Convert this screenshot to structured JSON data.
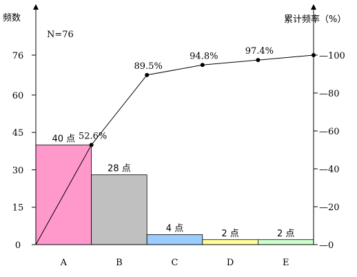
{
  "chart_data": {
    "type": "pareto",
    "left_axis_title": "频数",
    "right_axis_title": "累计频率（%）",
    "sample_size": "N=76",
    "categories": [
      "A",
      "B",
      "C",
      "D",
      "E"
    ],
    "values": [
      40,
      28,
      4,
      2,
      2
    ],
    "value_labels": [
      "40 点",
      "28 点",
      "4 点",
      "2 点",
      "2 点"
    ],
    "bar_colors": [
      "#ff99cc",
      "#c0c0c0",
      "#99ccff",
      "#ffff99",
      "#ccffcc"
    ],
    "cumulative_percent": [
      0,
      52.6,
      89.5,
      94.8,
      97.4,
      100
    ],
    "cumulative_labels": [
      "52.6%",
      "89.5%",
      "94.8%",
      "97.4%"
    ],
    "left_ticks": [
      "0",
      "15",
      "30",
      "45",
      "60",
      "76"
    ],
    "right_ticks": [
      "0",
      "20",
      "40",
      "60",
      "80",
      "100"
    ]
  }
}
